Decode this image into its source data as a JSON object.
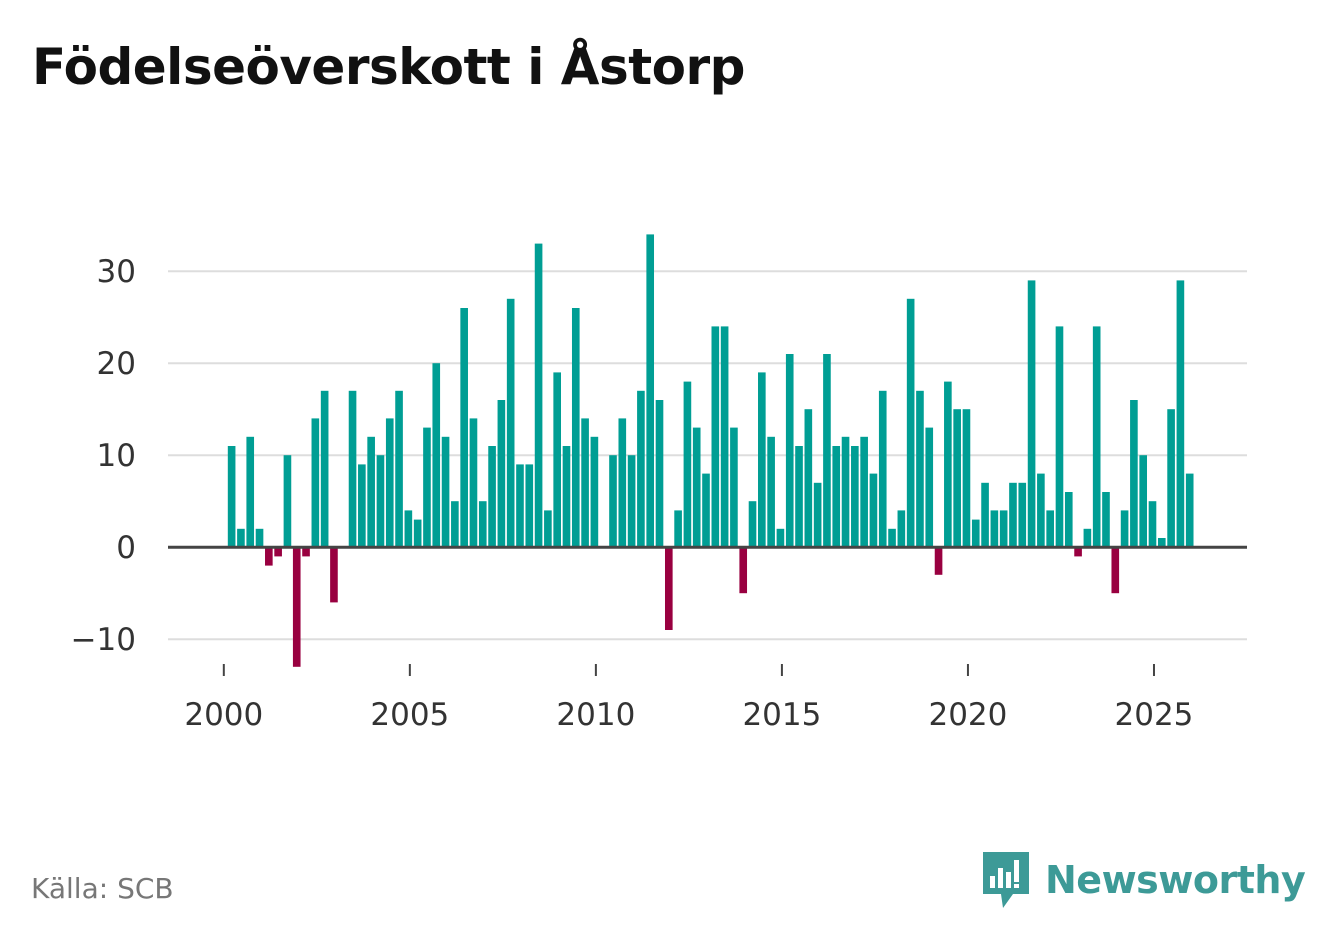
{
  "title": "Födelseöverskott i Åstorp",
  "source": "Källa: SCB",
  "logo_text": "Newsworthy",
  "colors": {
    "positive": "#009e94",
    "negative": "#990040",
    "grid": "#dddddd",
    "zero_line": "#444444",
    "logo": "#3d9a97"
  },
  "chart_data": {
    "type": "bar",
    "title": "Födelseöverskott i Åstorp",
    "xlabel": "",
    "ylabel": "",
    "ylim": [
      -14,
      36
    ],
    "xlim": [
      1998.5,
      2027.5
    ],
    "yticks": [
      30,
      20,
      10,
      0,
      -10
    ],
    "ytick_labels": [
      "30",
      "20",
      "10",
      "0",
      "−10"
    ],
    "xticks": [
      2000,
      2005,
      2010,
      2015,
      2020,
      2025
    ],
    "xtick_labels": [
      "2000",
      "2005",
      "2010",
      "2015",
      "2020",
      "2025"
    ],
    "start_year": 2000,
    "periods_per_year": 4,
    "values": [
      11,
      2,
      12,
      2,
      -2,
      -1,
      10,
      -13,
      -1,
      14,
      17,
      -6,
      null,
      17,
      9,
      12,
      10,
      14,
      17,
      4,
      3,
      13,
      20,
      12,
      5,
      26,
      14,
      5,
      11,
      16,
      27,
      9,
      9,
      33,
      4,
      19,
      11,
      26,
      14,
      12,
      null,
      10,
      14,
      10,
      17,
      34,
      16,
      -9,
      4,
      18,
      13,
      8,
      24,
      24,
      13,
      -5,
      5,
      19,
      12,
      2,
      21,
      11,
      15,
      7,
      21,
      11,
      12,
      11,
      12,
      8,
      17,
      2,
      4,
      27,
      17,
      13,
      -3,
      18,
      15,
      15,
      3,
      7,
      4,
      4,
      7,
      7,
      29,
      8,
      4,
      24,
      6,
      -1,
      2,
      24,
      6,
      -5,
      4,
      16,
      10,
      5,
      1,
      15,
      29,
      8
    ]
  }
}
